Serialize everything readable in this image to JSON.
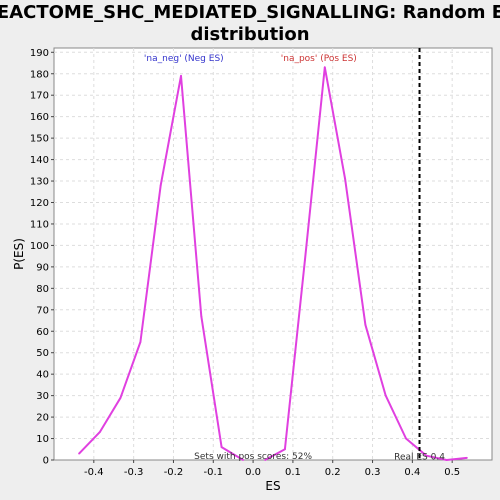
{
  "chart_data": {
    "type": "line",
    "title_lines": [
      "REACTOME_SHC_MEDIATED_SIGNALLING: Random ES",
      "distribution"
    ],
    "xlabel": "ES",
    "ylabel": "P(ES)",
    "xlim": [
      -0.5,
      0.6
    ],
    "ylim": [
      0,
      192
    ],
    "x_ticks": [
      -0.4,
      -0.3,
      -0.2,
      -0.1,
      0.0,
      0.1,
      0.2,
      0.3,
      0.4,
      0.5
    ],
    "x_tick_labels": [
      "-0.4",
      "-0.3",
      "-0.2",
      "-0.1",
      "0.0",
      "0.1",
      "0.2",
      "0.3",
      "0.4",
      "0.5"
    ],
    "y_ticks": [
      0,
      10,
      20,
      30,
      40,
      50,
      60,
      70,
      80,
      90,
      100,
      110,
      120,
      130,
      140,
      150,
      160,
      170,
      180,
      190
    ],
    "y_tick_labels": [
      "0",
      "10",
      "20",
      "30",
      "40",
      "50",
      "60",
      "70",
      "80",
      "90",
      "100",
      "110",
      "120",
      "130",
      "140",
      "150",
      "160",
      "170",
      "180",
      "190"
    ],
    "grid": true,
    "series": [
      {
        "name": "'na_neg' (Neg ES)",
        "color": "#e040e0",
        "x": [
          -0.437,
          -0.385,
          -0.333,
          -0.283,
          -0.232,
          -0.181,
          -0.13,
          -0.079,
          -0.025
        ],
        "y": [
          3,
          13,
          29,
          55,
          128,
          179,
          67,
          6,
          0
        ]
      },
      {
        "name": "'na_pos' (Pos ES)",
        "color": "#e040e0",
        "x": [
          0.03,
          0.08,
          0.13,
          0.18,
          0.231,
          0.282,
          0.333,
          0.384,
          0.435,
          0.486,
          0.537
        ],
        "y": [
          0,
          5,
          93,
          183,
          131,
          63,
          30,
          10,
          2,
          0,
          1
        ]
      }
    ],
    "legend_labels": [
      {
        "text": "'na_neg' (Neg ES)",
        "color": "#3333cc",
        "x": -0.174
      },
      {
        "text": "'na_pos' (Pos ES)",
        "color": "#cc3333",
        "x": 0.165
      }
    ],
    "real_es": 0.4,
    "real_es_line_x": 0.418,
    "real_es_label": "Real ES 0.4",
    "pos_scores_label": "Sets with pos scores: 52%"
  }
}
